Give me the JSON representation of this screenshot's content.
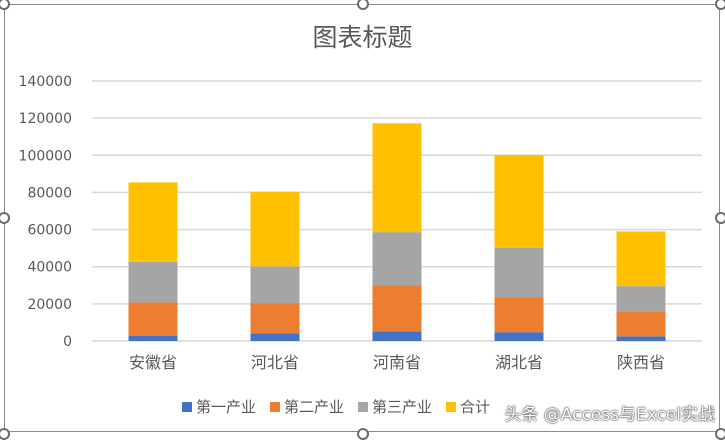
{
  "chart_data": {
    "type": "bar",
    "stacked": true,
    "title": "图表标题",
    "categories": [
      "安徽省",
      "河北省",
      "河南省",
      "湖北省",
      "陕西省"
    ],
    "series": [
      {
        "name": "第一产业",
        "color": "#4472C4",
        "values": [
          2900,
          4100,
          5200,
          4700,
          2500
        ]
      },
      {
        "name": "第二产业",
        "color": "#ED7D31",
        "values": [
          17800,
          16100,
          24900,
          18700,
          13500
        ]
      },
      {
        "name": "第三产业",
        "color": "#A5A5A5",
        "values": [
          22000,
          20000,
          28500,
          26700,
          13500
        ]
      },
      {
        "name": "合计",
        "color": "#FFC000",
        "values": [
          42700,
          40200,
          58600,
          50100,
          29500
        ]
      }
    ],
    "ylim": [
      0,
      140000
    ],
    "yticks": [
      "0",
      "20000",
      "40000",
      "60000",
      "80000",
      "100000",
      "120000",
      "140000"
    ],
    "grid": true,
    "legend": "bottom"
  },
  "watermark": "头条 @Access与Excel实战"
}
